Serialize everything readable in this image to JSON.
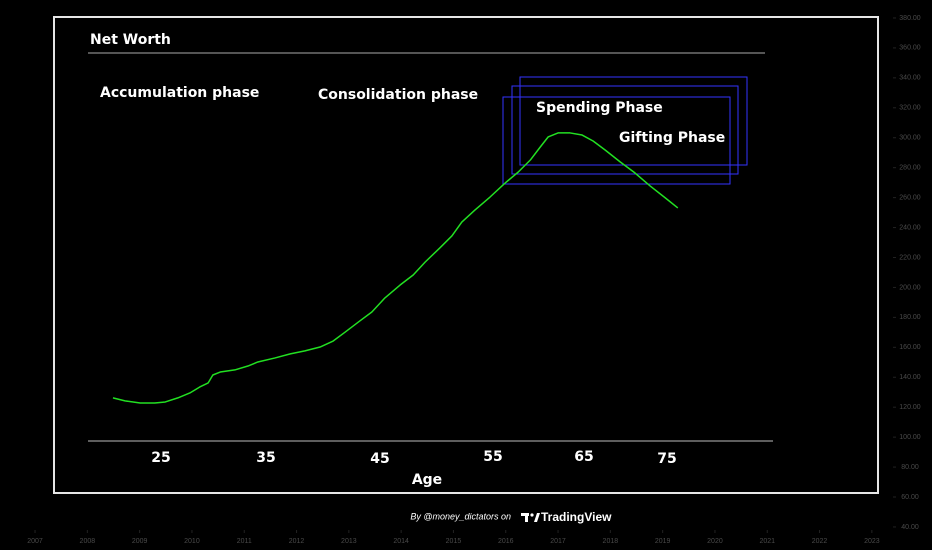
{
  "chart_data": {
    "type": "line",
    "title": "Net Worth",
    "x_label": "Age",
    "annotations": [
      "Accumulation phase",
      "Consolidation phase",
      "Spending Phase",
      "Gifting Phase"
    ],
    "age_labels": [
      25,
      35,
      45,
      55,
      65,
      75
    ],
    "footer": {
      "credit": "By @money_dictators on",
      "brand": "TradingView"
    },
    "series": [
      {
        "name": "Net Worth",
        "color": "#22e022",
        "x": [
          2008.49,
          2008.72,
          2009.01,
          2009.29,
          2009.49,
          2009.73,
          2009.96,
          2010.15,
          2010.31,
          2010.4,
          2010.54,
          2010.82,
          2011.07,
          2011.26,
          2011.59,
          2011.88,
          2012.16,
          2012.45,
          2012.7,
          2012.93,
          2013.21,
          2013.44,
          2013.69,
          2013.98,
          2014.23,
          2014.46,
          2014.74,
          2014.97,
          2015.16,
          2015.41,
          2015.7,
          2015.99,
          2016.24,
          2016.47,
          2016.66,
          2016.81,
          2017.0,
          2017.23,
          2017.46,
          2017.67,
          2017.9,
          2018.19,
          2018.47,
          2018.76,
          2019.05,
          2019.29
        ],
        "values": [
          126.2,
          124.2,
          122.8,
          122.8,
          123.5,
          126.2,
          129.5,
          133.5,
          136.2,
          141.5,
          143.5,
          144.9,
          147.5,
          150.2,
          152.9,
          155.6,
          157.6,
          160.2,
          164.2,
          170.2,
          177.6,
          183.6,
          193.0,
          201.6,
          208.3,
          217.0,
          226.4,
          234.4,
          243.7,
          251.7,
          260.4,
          269.8,
          277.1,
          285.1,
          293.8,
          300.5,
          303.2,
          303.2,
          301.8,
          297.8,
          291.8,
          283.8,
          276.5,
          267.8,
          259.8,
          253.1
        ]
      }
    ],
    "xlim": [
      2006.33,
      2024.15
    ],
    "xticks": [
      2007,
      2008,
      2009,
      2010,
      2011,
      2012,
      2013,
      2014,
      2015,
      2016,
      2017,
      2018,
      2019,
      2020,
      2021,
      2022,
      2023
    ],
    "ylim": [
      24.6,
      392.0
    ],
    "yticks": [
      {
        "value": 380,
        "label": "380.00"
      },
      {
        "value": 360,
        "label": "360.00"
      },
      {
        "value": 340,
        "label": "340.00"
      },
      {
        "value": 320,
        "label": "320.00"
      },
      {
        "value": 300,
        "label": "300.00"
      },
      {
        "value": 280,
        "label": "280.00"
      },
      {
        "value": 260,
        "label": "260.00"
      },
      {
        "value": 240,
        "label": "240.00"
      },
      {
        "value": 220,
        "label": "220.00"
      },
      {
        "value": 200,
        "label": "200.00"
      },
      {
        "value": 180,
        "label": "180.00"
      },
      {
        "value": 160,
        "label": "160.00"
      },
      {
        "value": 140,
        "label": "140.00"
      },
      {
        "value": 120,
        "label": "120.00"
      },
      {
        "value": 100,
        "label": "100.00"
      },
      {
        "value": 80,
        "label": "80.00"
      },
      {
        "value": 60,
        "label": "60.00"
      },
      {
        "value": 40,
        "label": "40.00"
      }
    ]
  }
}
